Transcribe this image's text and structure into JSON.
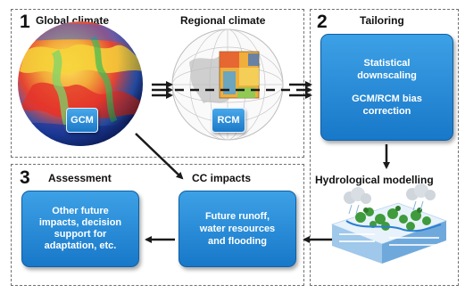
{
  "panels": {
    "global": {
      "number": "1",
      "title": "Global climate",
      "model_tag": "GCM"
    },
    "regional": {
      "title": "Regional climate",
      "model_tag": "RCM"
    },
    "tailoring": {
      "number": "2",
      "title": "Tailoring",
      "box_lines": [
        "Statistical",
        "downscaling",
        "",
        "GCM/RCM bias",
        "correction"
      ]
    },
    "hydrological": {
      "title": "Hydrological modelling"
    },
    "cc_impacts": {
      "title": "CC impacts",
      "box_lines": [
        "Future runoff,",
        "water resources",
        "and flooding"
      ]
    },
    "assessment": {
      "number": "3",
      "title": "Assessment",
      "box_lines": [
        "Other future",
        "impacts, decision",
        "support for",
        "adaptation, etc."
      ]
    }
  },
  "colors": {
    "box_fill_top": "#3da1e6",
    "box_fill_bottom": "#1878c9",
    "panel_border": "#6f6f6f",
    "arrow": "#1a1a1a"
  },
  "icons": [
    "globe-icon",
    "regional-map-icon",
    "hydrology-illustration-icon"
  ]
}
